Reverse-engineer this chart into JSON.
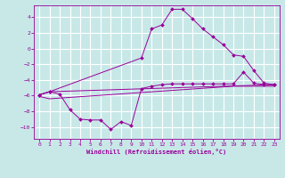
{
  "background_color": "#c8e8e8",
  "grid_color": "#ffffff",
  "line_color": "#990099",
  "xlabel": "Windchill (Refroidissement éolien,°C)",
  "xlim": [
    -0.5,
    23.5
  ],
  "ylim": [
    -11.5,
    5.5
  ],
  "yticks": [
    -10,
    -8,
    -6,
    -4,
    -2,
    0,
    2,
    4
  ],
  "xticks": [
    0,
    1,
    2,
    3,
    4,
    5,
    6,
    7,
    8,
    9,
    10,
    11,
    12,
    13,
    14,
    15,
    16,
    17,
    18,
    19,
    20,
    21,
    22,
    23
  ],
  "series1_x": [
    0,
    1,
    2,
    3,
    4,
    5,
    6,
    7,
    8,
    9,
    10,
    11,
    12,
    13,
    14,
    15,
    16,
    17,
    18,
    19,
    20,
    21,
    22,
    23
  ],
  "series1_y": [
    -5.9,
    -5.5,
    -5.8,
    -7.8,
    -9.0,
    -9.1,
    -9.1,
    -10.3,
    -9.3,
    -9.8,
    -5.1,
    -4.8,
    -4.6,
    -4.5,
    -4.5,
    -4.5,
    -4.5,
    -4.5,
    -4.5,
    -4.5,
    -3.0,
    -4.4,
    -4.6,
    -4.6
  ],
  "series2_x": [
    0,
    1,
    10,
    11,
    12,
    13,
    14,
    15,
    16,
    17,
    18,
    19,
    20,
    21,
    22,
    23
  ],
  "series2_y": [
    -5.9,
    -5.5,
    -1.2,
    2.5,
    3.0,
    5.0,
    5.0,
    3.8,
    2.5,
    1.5,
    0.5,
    -0.8,
    -1.0,
    -2.8,
    -4.4,
    -4.6
  ],
  "series3_x": [
    0,
    1,
    23
  ],
  "series3_y": [
    -5.9,
    -5.5,
    -4.6
  ],
  "series4_x": [
    0,
    1,
    19,
    23
  ],
  "series4_y": [
    -6.1,
    -6.4,
    -4.8,
    -4.8
  ]
}
